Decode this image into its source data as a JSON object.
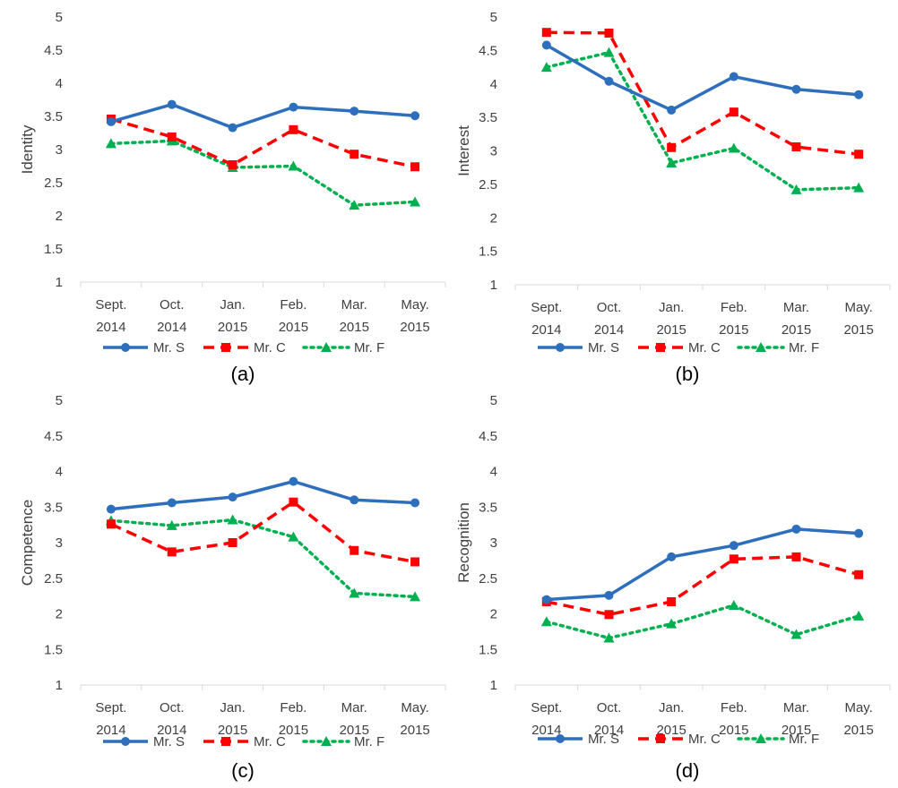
{
  "colors": {
    "mr_s": "#2e6fbd",
    "mr_c": "#ff0000",
    "mr_f": "#00b050",
    "axis": "#d9d9d9",
    "text": "#404040"
  },
  "chart_data": [
    {
      "type": "line",
      "panel_label": "(a)",
      "ylabel": "Identity",
      "ylim": [
        1,
        5
      ],
      "yticks": [
        "1",
        "1.5",
        "2",
        "2.5",
        "3",
        "3.5",
        "4",
        "4.5",
        "5"
      ],
      "categories": [
        {
          "month": "Sept.",
          "year": "2014"
        },
        {
          "month": "Oct.",
          "year": "2014"
        },
        {
          "month": "Jan.",
          "year": "2015"
        },
        {
          "month": "Feb.",
          "year": "2015"
        },
        {
          "month": "Mar.",
          "year": "2015"
        },
        {
          "month": "May.",
          "year": "2015"
        }
      ],
      "series": [
        {
          "name": "Mr. S",
          "values": [
            3.42,
            3.68,
            3.33,
            3.64,
            3.58,
            3.51
          ]
        },
        {
          "name": "Mr. C",
          "values": [
            3.46,
            3.19,
            2.77,
            3.3,
            2.93,
            2.74
          ]
        },
        {
          "name": "Mr. F",
          "values": [
            3.09,
            3.13,
            2.73,
            2.75,
            2.16,
            2.21
          ]
        }
      ]
    },
    {
      "type": "line",
      "panel_label": "(b)",
      "ylabel": "Interest",
      "ylim": [
        1,
        5
      ],
      "yticks": [
        "1",
        "1.5",
        "2",
        "2.5",
        "3",
        "3.5",
        "4",
        "4.5",
        "5"
      ],
      "categories": [
        {
          "month": "Sept.",
          "year": "2014"
        },
        {
          "month": "Oct.",
          "year": "2014"
        },
        {
          "month": "Jan.",
          "year": "2015"
        },
        {
          "month": "Feb.",
          "year": "2015"
        },
        {
          "month": "Mar.",
          "year": "2015"
        },
        {
          "month": "May.",
          "year": "2015"
        }
      ],
      "series": [
        {
          "name": "Mr. S",
          "values": [
            4.58,
            4.04,
            3.61,
            4.11,
            3.92,
            3.84
          ]
        },
        {
          "name": "Mr. C",
          "values": [
            4.77,
            4.76,
            3.05,
            3.58,
            3.06,
            2.95
          ]
        },
        {
          "name": "Mr. F",
          "values": [
            4.25,
            4.47,
            2.82,
            3.04,
            2.42,
            2.45
          ]
        }
      ]
    },
    {
      "type": "line",
      "panel_label": "(c)",
      "ylabel": "Competence",
      "ylim": [
        1,
        5
      ],
      "yticks": [
        "1",
        "1.5",
        "2",
        "2.5",
        "3",
        "3.5",
        "4",
        "4.5",
        "5"
      ],
      "categories": [
        {
          "month": "Sept.",
          "year": "2014"
        },
        {
          "month": "Oct.",
          "year": "2014"
        },
        {
          "month": "Jan.",
          "year": "2015"
        },
        {
          "month": "Feb.",
          "year": "2015"
        },
        {
          "month": "Mar.",
          "year": "2015"
        },
        {
          "month": "May.",
          "year": "2015"
        }
      ],
      "series": [
        {
          "name": "Mr. S",
          "values": [
            3.47,
            3.56,
            3.64,
            3.86,
            3.6,
            3.56
          ]
        },
        {
          "name": "Mr. C",
          "values": [
            3.26,
            2.87,
            3.0,
            3.57,
            2.89,
            2.73
          ]
        },
        {
          "name": "Mr. F",
          "values": [
            3.31,
            3.24,
            3.32,
            3.08,
            2.29,
            2.24
          ]
        }
      ]
    },
    {
      "type": "line",
      "panel_label": "(d)",
      "ylabel": "Recognition",
      "ylim": [
        1,
        5
      ],
      "yticks": [
        "1",
        "1.5",
        "2",
        "2.5",
        "3",
        "3.5",
        "4",
        "4.5",
        "5"
      ],
      "categories": [
        {
          "month": "Sept.",
          "year": "2014"
        },
        {
          "month": "Oct.",
          "year": "2014"
        },
        {
          "month": "Jan.",
          "year": "2015"
        },
        {
          "month": "Feb.",
          "year": "2015"
        },
        {
          "month": "Mar.",
          "year": "2015"
        },
        {
          "month": "May.",
          "year": "2015"
        }
      ],
      "series": [
        {
          "name": "Mr. S",
          "values": [
            2.2,
            2.26,
            2.8,
            2.96,
            3.19,
            3.13
          ]
        },
        {
          "name": "Mr. C",
          "values": [
            2.17,
            1.99,
            2.17,
            2.77,
            2.8,
            2.55
          ]
        },
        {
          "name": "Mr. F",
          "values": [
            1.89,
            1.66,
            1.86,
            2.12,
            1.71,
            1.97
          ]
        }
      ]
    }
  ]
}
